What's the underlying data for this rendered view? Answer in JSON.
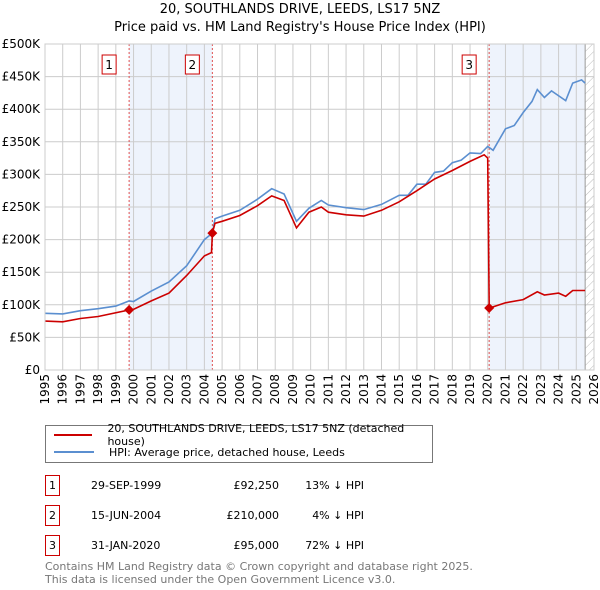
{
  "chart_data": {
    "type": "line",
    "title": "20, SOUTHLANDS DRIVE, LEEDS, LS17 5NZ",
    "subtitle": "Price paid vs. HM Land Registry's House Price Index (HPI)",
    "xlim": [
      1995,
      2026
    ],
    "ylim": [
      0,
      500000
    ],
    "y_ticks": [
      "£0",
      "£50K",
      "£100K",
      "£150K",
      "£200K",
      "£250K",
      "£300K",
      "£350K",
      "£400K",
      "£450K",
      "£500K"
    ],
    "x_ticks": [
      "1995",
      "1996",
      "1997",
      "1998",
      "1999",
      "2000",
      "2001",
      "2002",
      "2003",
      "2004",
      "2005",
      "2006",
      "2007",
      "2008",
      "2009",
      "2010",
      "2011",
      "2012",
      "2013",
      "2014",
      "2015",
      "2016",
      "2017",
      "2018",
      "2019",
      "2020",
      "2021",
      "2022",
      "2023",
      "2024",
      "2025",
      "2026"
    ],
    "series": [
      {
        "name": "20, SOUTHLANDS DRIVE, LEEDS, LS17 5NZ (detached house)",
        "color": "#cc0000",
        "x": [
          1995,
          1996,
          1997,
          1998,
          1999.75,
          2000,
          2001,
          2002,
          2003,
          2004,
          2004.4,
          2004.45,
          2004.6,
          2005,
          2006,
          2007,
          2007.8,
          2008.5,
          2009.2,
          2009.9,
          2010.6,
          2011,
          2012,
          2013,
          2014,
          2015,
          2016,
          2017,
          2018,
          2019,
          2019.8,
          2020.0,
          2020.08,
          2021,
          2022,
          2022.8,
          2023.2,
          2024,
          2024.4,
          2024.8,
          2025.5
        ],
        "y": [
          75,
          74,
          79,
          82,
          92.25,
          93,
          106,
          118,
          145,
          175,
          180,
          210,
          225,
          228,
          237,
          252,
          267,
          260,
          218,
          242,
          250,
          242,
          238,
          236,
          245,
          258,
          275,
          293,
          306,
          320,
          330,
          325,
          95,
          103,
          108,
          120,
          115,
          118,
          113,
          122,
          122
        ]
      },
      {
        "name": "HPI: Average price, detached house, Leeds",
        "color": "#5b8fd0",
        "x": [
          1995,
          1996,
          1997,
          1998,
          1999,
          1999.75,
          2000,
          2001,
          2002,
          2003,
          2004,
          2004.45,
          2004.6,
          2005,
          2006,
          2007,
          2007.8,
          2008.5,
          2009.2,
          2009.9,
          2010.6,
          2011,
          2012,
          2013,
          2014,
          2015,
          2015.5,
          2016,
          2016.5,
          2017,
          2017.5,
          2018,
          2018.5,
          2019,
          2019.6,
          2020,
          2020.3,
          2021,
          2021.5,
          2022,
          2022.5,
          2022.8,
          2023.2,
          2023.6,
          2024.4,
          2024.8,
          2025.3,
          2025.5
        ],
        "y": [
          87,
          86,
          91,
          94,
          98,
          106,
          105,
          121,
          135,
          160,
          200,
          210,
          232,
          236,
          245,
          262,
          278,
          270,
          228,
          248,
          260,
          253,
          249,
          246,
          254,
          268,
          268,
          285,
          285,
          303,
          305,
          318,
          322,
          333,
          332,
          343,
          337,
          370,
          375,
          395,
          412,
          430,
          418,
          428,
          413,
          440,
          445,
          440
        ]
      }
    ],
    "y_units": "thousands GBP",
    "sales": [
      {
        "label": "1",
        "x": 1999.75,
        "y": 92.25
      },
      {
        "label": "2",
        "x": 2004.45,
        "y": 210
      },
      {
        "label": "3",
        "x": 2020.08,
        "y": 95
      }
    ],
    "shaded_ranges": [
      [
        1999.75,
        2004.45
      ],
      [
        2020.08,
        2025.5
      ]
    ],
    "future_hatch_from": 2025.5,
    "grid": true
  },
  "table": [
    {
      "num": "1",
      "date": "29-SEP-1999",
      "price": "£92,250",
      "hpi": "13% ↓ HPI"
    },
    {
      "num": "2",
      "date": "15-JUN-2004",
      "price": "£210,000",
      "hpi": "4% ↓ HPI"
    },
    {
      "num": "3",
      "date": "31-JAN-2020",
      "price": "£95,000",
      "hpi": "72% ↓ HPI"
    }
  ],
  "footer": [
    "Contains HM Land Registry data © Crown copyright and database right 2025.",
    "This data is licensed under the Open Government Licence v3.0."
  ]
}
